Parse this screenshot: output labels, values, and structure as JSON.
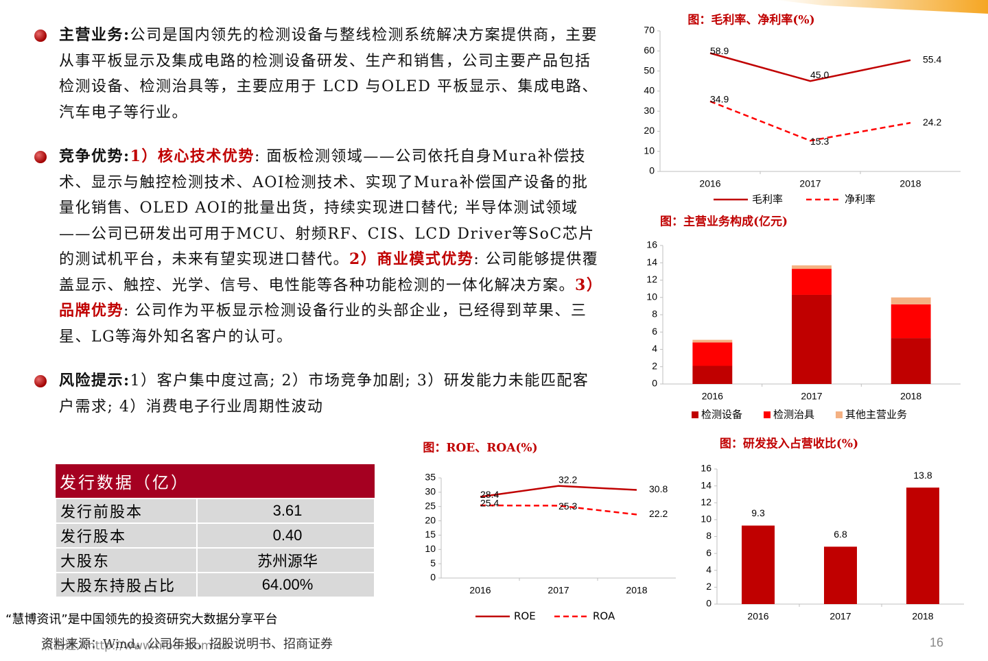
{
  "bullets": [
    {
      "label": "主营业务:",
      "parts": [
        {
          "text": "公司是国内领先的检测设备与整线检测系统解决方案提供商，主要从事平板显示及集成电路的检测设备研发、生产和销售，公司主要产品包括检测设备、检测治具等，主要应用于 LCD 与OLED 平板显示、集成电路、汽车电子等行业。",
          "emphasis": false
        }
      ]
    },
    {
      "label": "竞争优势:",
      "parts": [
        {
          "text": "1）核心技术优势",
          "emphasis": true
        },
        {
          "text": ": 面板检测领域——公司依托自身Mura补偿技术、显示与触控检测技术、AOI检测技术、实现了Mura补偿国产设备的批量化销售、OLED AOI的批量出货，持续实现进口替代; 半导体测试领域——公司已研发出可用于MCU、射频RF、CIS、LCD Driver等SoC芯片的测试机平台，未来有望实现进口替代。",
          "emphasis": false
        },
        {
          "text": "2）商业模式优势",
          "emphasis": true
        },
        {
          "text": ": 公司能够提供覆盖显示、触控、光学、信号、电性能等各种功能检测的一体化解决方案。",
          "emphasis": false
        },
        {
          "text": "3）品牌优势",
          "emphasis": true
        },
        {
          "text": ": 公司作为平板显示检测设备行业的头部企业，已经得到苹果、三星、LG等海外知名客户的认可。",
          "emphasis": false
        }
      ]
    },
    {
      "label": "风险提示:",
      "parts": [
        {
          "text": "1）客户集中度过高; 2）市场竞争加剧; 3）研发能力未能匹配客户需求; 4）消费电子行业周期性波动",
          "emphasis": false
        }
      ]
    }
  ],
  "table": {
    "title": "发行数据（亿）",
    "rows": [
      [
        "发行前股本",
        "3.61"
      ],
      [
        "发行股本",
        "0.40"
      ],
      [
        "大股东",
        "苏州源华"
      ],
      [
        "大股东持股占比",
        "64.00%"
      ]
    ]
  },
  "footer": {
    "slogan": "“慧博资讯”是中国领先的投资研究大数据分享平台",
    "watermark": "点击进入http://www.hibor.com.cn",
    "source": "资料来源：Wind，公司年报，招股说明书、招商证券",
    "page": "16"
  },
  "chart_data": [
    {
      "type": "line",
      "title": "图：毛利率、净利率(%)",
      "categories": [
        "2016",
        "2017",
        "2018"
      ],
      "series": [
        {
          "name": "毛利率",
          "color": "#c00000",
          "dashed": false,
          "values": [
            58.9,
            45.0,
            55.4
          ],
          "value_labels": [
            "58.9",
            "45.0",
            "55.4"
          ]
        },
        {
          "name": "净利率",
          "color": "#ff0000",
          "dashed": true,
          "values": [
            34.9,
            15.3,
            24.2
          ]
        }
      ],
      "ylim": [
        0,
        70
      ],
      "yticks": [
        0,
        10,
        20,
        30,
        40,
        50,
        60,
        70
      ],
      "legend": "bottom"
    },
    {
      "type": "stacked_bar",
      "title": "图：主营业务构成(亿元)",
      "categories": [
        "2016",
        "2017",
        "2018"
      ],
      "series": [
        {
          "name": "检测设备",
          "color": "#c00000",
          "values": [
            2.1,
            10.3,
            5.3
          ]
        },
        {
          "name": "检测治具",
          "color": "#ff0000",
          "values": [
            2.7,
            3.0,
            3.9
          ]
        },
        {
          "name": "其他主营业务",
          "color": "#f4b183",
          "values": [
            0.3,
            0.4,
            0.8
          ]
        }
      ],
      "ylim": [
        0,
        16
      ],
      "yticks": [
        0,
        2,
        4,
        6,
        8,
        10,
        12,
        14,
        16
      ],
      "legend": "bottom"
    },
    {
      "type": "line",
      "title": "图：ROE、ROA(%)",
      "categories": [
        "2016",
        "2017",
        "2018"
      ],
      "series": [
        {
          "name": "ROE",
          "color": "#c00000",
          "dashed": false,
          "values": [
            28.4,
            32.2,
            30.8
          ]
        },
        {
          "name": "ROA",
          "color": "#ff0000",
          "dashed": true,
          "values": [
            25.4,
            25.3,
            22.2
          ]
        }
      ],
      "ylim": [
        0,
        35
      ],
      "yticks": [
        0,
        5,
        10,
        15,
        20,
        25,
        30,
        35
      ],
      "legend": "bottom"
    },
    {
      "type": "bar",
      "title": "图：研发投入占营收比(%)",
      "categories": [
        "2016",
        "2017",
        "2018"
      ],
      "values": [
        9.3,
        6.8,
        13.8
      ],
      "color": "#c00000",
      "ylim": [
        0,
        16
      ],
      "yticks": [
        0,
        2,
        4,
        6,
        8,
        10,
        12,
        14,
        16
      ]
    }
  ]
}
